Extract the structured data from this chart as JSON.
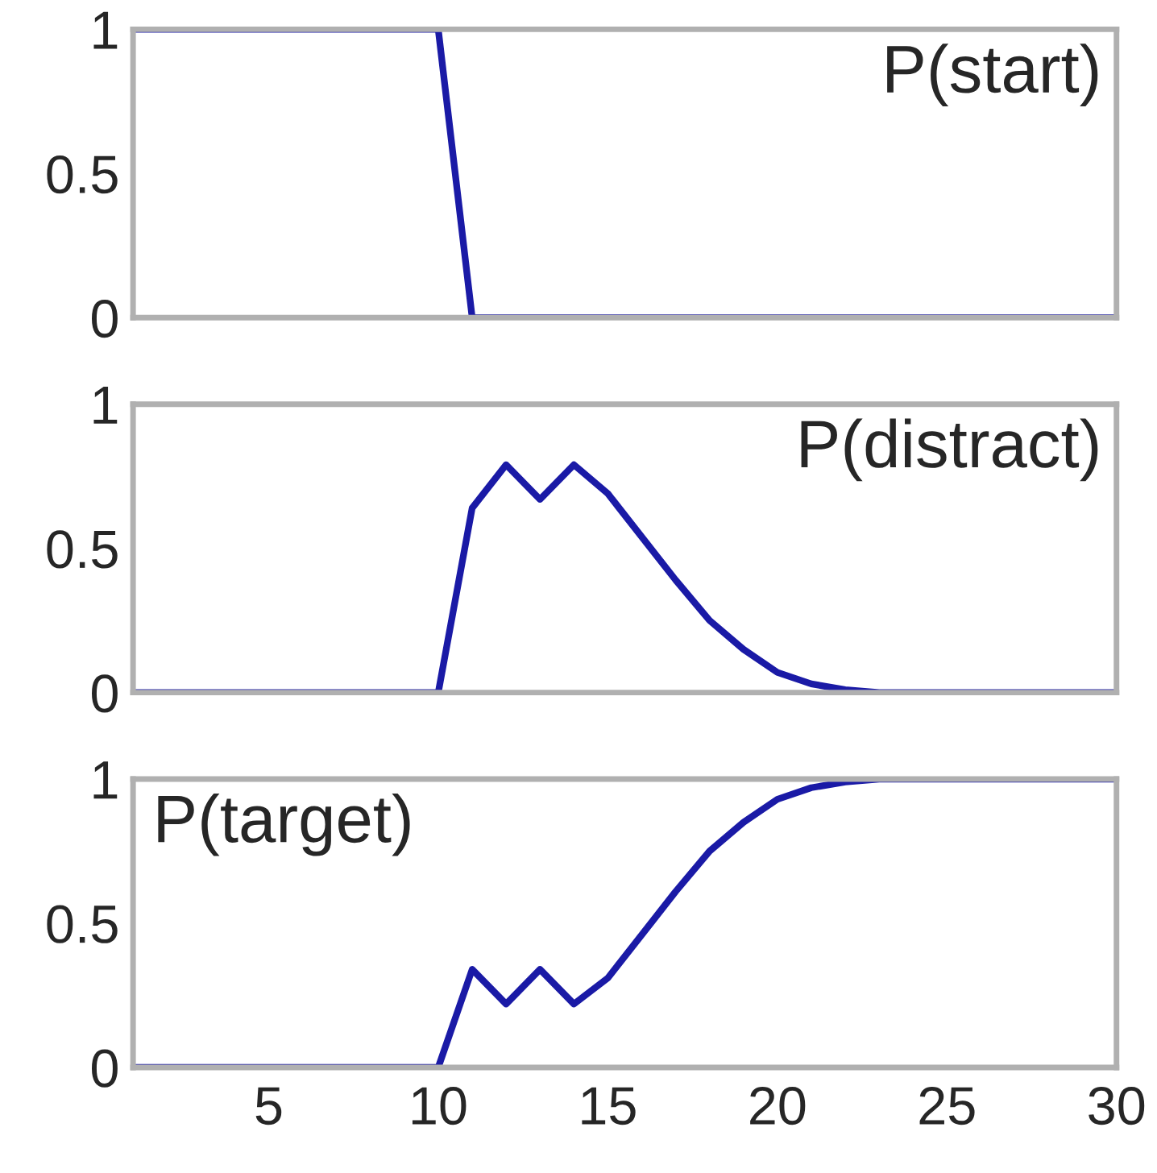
{
  "chart_data": [
    {
      "type": "line",
      "x": [
        1,
        2,
        3,
        4,
        5,
        6,
        7,
        8,
        9,
        10,
        11,
        12,
        13,
        14,
        15,
        16,
        17,
        18,
        19,
        20,
        21,
        22,
        23,
        24,
        25,
        26,
        27,
        28,
        29,
        30
      ],
      "series": [
        {
          "color": "#1a1aa6",
          "values": [
            1,
            1,
            1,
            1,
            1,
            1,
            1,
            1,
            1,
            1,
            0,
            0,
            0,
            0,
            0,
            0,
            0,
            0,
            0,
            0,
            0,
            0,
            0,
            0,
            0,
            0,
            0,
            0,
            0,
            0
          ]
        }
      ],
      "xlim": [
        1,
        30
      ],
      "ylim": [
        0,
        1
      ],
      "yticks": [
        0,
        0.5,
        1
      ],
      "tick_labels": "y",
      "annotations": [
        "P(start)"
      ]
    },
    {
      "type": "line",
      "x": [
        1,
        2,
        3,
        4,
        5,
        6,
        7,
        8,
        9,
        10,
        11,
        12,
        13,
        14,
        15,
        16,
        17,
        18,
        19,
        20,
        21,
        22,
        23,
        24,
        25,
        26,
        27,
        28,
        29,
        30
      ],
      "series": [
        {
          "color": "#1a1aa6",
          "values": [
            0,
            0,
            0,
            0,
            0,
            0,
            0,
            0,
            0,
            0,
            0.64,
            0.79,
            0.67,
            0.79,
            0.69,
            0.54,
            0.39,
            0.25,
            0.15,
            0.07,
            0.03,
            0.01,
            0,
            0,
            0,
            0,
            0,
            0,
            0,
            0
          ]
        }
      ],
      "xlim": [
        1,
        30
      ],
      "ylim": [
        0,
        1
      ],
      "yticks": [
        0,
        0.5,
        1
      ],
      "tick_labels": "y",
      "annotations": [
        "P(distract)"
      ]
    },
    {
      "type": "line",
      "x": [
        1,
        2,
        3,
        4,
        5,
        6,
        7,
        8,
        9,
        10,
        11,
        12,
        13,
        14,
        15,
        16,
        17,
        18,
        19,
        20,
        21,
        22,
        23,
        24,
        25,
        26,
        27,
        28,
        29,
        30
      ],
      "series": [
        {
          "color": "#1a1aa6",
          "values": [
            0,
            0,
            0,
            0,
            0,
            0,
            0,
            0,
            0,
            0,
            0.34,
            0.22,
            0.34,
            0.22,
            0.31,
            0.46,
            0.61,
            0.75,
            0.85,
            0.93,
            0.97,
            0.99,
            1,
            1,
            1,
            1,
            1,
            1,
            1,
            1
          ]
        }
      ],
      "xlim": [
        1,
        30
      ],
      "ylim": [
        0,
        1
      ],
      "xticks": [
        5,
        10,
        15,
        20,
        25,
        30
      ],
      "yticks": [
        0,
        0.5,
        1
      ],
      "annotations": [
        "P(target)"
      ]
    }
  ]
}
